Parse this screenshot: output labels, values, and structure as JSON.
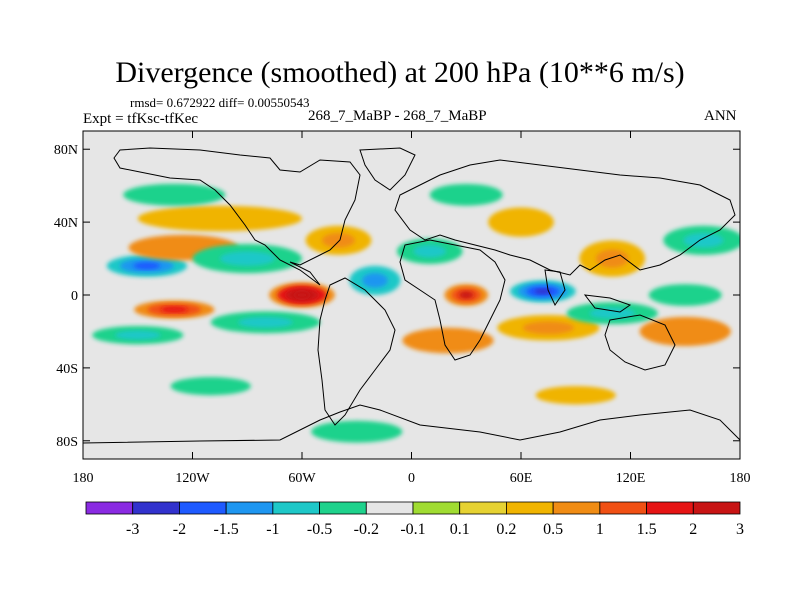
{
  "title": "Divergence (smoothed) at 200 hPa (10**6 m/s)",
  "stats": "rmsd= 0.672922 diff= 0.00550543",
  "expt": "Expt = tfKsc-tfKec",
  "cases": "268_7_MaBP - 268_7_MaBP",
  "season": "ANN",
  "map": {
    "projection": "cylindrical-equidistant",
    "lon_range": [
      -180,
      180
    ],
    "lat_range": [
      -90,
      90
    ],
    "background_color": "#e6e6e6",
    "lat_ticks": [
      {
        "label": "80N",
        "lat": 80
      },
      {
        "label": "40N",
        "lat": 40
      },
      {
        "label": "0",
        "lat": 0
      },
      {
        "label": "40S",
        "lat": -40
      },
      {
        "label": "80S",
        "lat": -80
      }
    ],
    "lon_ticks": [
      {
        "label": "180",
        "lon": -180
      },
      {
        "label": "120W",
        "lon": -120
      },
      {
        "label": "60W",
        "lon": -60
      },
      {
        "label": "0",
        "lon": 0
      },
      {
        "label": "60E",
        "lon": 60
      },
      {
        "label": "120E",
        "lon": 120
      },
      {
        "label": "180",
        "lon": 180
      }
    ],
    "field_features": [
      {
        "lon": -60,
        "lat": 0,
        "rx": 18,
        "ry": 7,
        "value": 3.2
      },
      {
        "lon": 30,
        "lat": 0,
        "rx": 12,
        "ry": 6,
        "value": 2.0
      },
      {
        "lon": 72,
        "lat": 2,
        "rx": 18,
        "ry": 6,
        "value": -2.5
      },
      {
        "lon": -130,
        "lat": -8,
        "rx": 22,
        "ry": 5,
        "value": 1.8
      },
      {
        "lon": -145,
        "lat": 16,
        "rx": 22,
        "ry": 6,
        "value": -2.0
      },
      {
        "lon": -125,
        "lat": 26,
        "rx": 30,
        "ry": 7,
        "value": 0.6
      },
      {
        "lon": -90,
        "lat": 20,
        "rx": 30,
        "ry": 8,
        "value": -0.9
      },
      {
        "lon": -105,
        "lat": 42,
        "rx": 45,
        "ry": 7,
        "value": 0.4
      },
      {
        "lon": -130,
        "lat": 55,
        "rx": 28,
        "ry": 6,
        "value": -0.4
      },
      {
        "lon": -150,
        "lat": -22,
        "rx": 25,
        "ry": 5,
        "value": -0.7
      },
      {
        "lon": -80,
        "lat": -15,
        "rx": 30,
        "ry": 6,
        "value": -0.8
      },
      {
        "lon": -20,
        "lat": 8,
        "rx": 14,
        "ry": 8,
        "value": -1.2
      },
      {
        "lon": -40,
        "lat": 30,
        "rx": 18,
        "ry": 8,
        "value": 0.9
      },
      {
        "lon": 10,
        "lat": 24,
        "rx": 18,
        "ry": 7,
        "value": -0.7
      },
      {
        "lon": 20,
        "lat": -25,
        "rx": 25,
        "ry": 7,
        "value": 0.6
      },
      {
        "lon": 75,
        "lat": -18,
        "rx": 28,
        "ry": 7,
        "value": 0.7
      },
      {
        "lon": 110,
        "lat": 20,
        "rx": 18,
        "ry": 10,
        "value": 0.9
      },
      {
        "lon": 110,
        "lat": -10,
        "rx": 25,
        "ry": 6,
        "value": -0.9
      },
      {
        "lon": 160,
        "lat": 30,
        "rx": 22,
        "ry": 8,
        "value": -0.8
      },
      {
        "lon": 150,
        "lat": -20,
        "rx": 25,
        "ry": 8,
        "value": 0.5
      },
      {
        "lon": 150,
        "lat": 0,
        "rx": 20,
        "ry": 6,
        "value": -0.5
      },
      {
        "lon": 60,
        "lat": 40,
        "rx": 18,
        "ry": 8,
        "value": 0.4
      },
      {
        "lon": 30,
        "lat": 55,
        "rx": 20,
        "ry": 6,
        "value": -0.3
      },
      {
        "lon": -30,
        "lat": -75,
        "rx": 25,
        "ry": 6,
        "value": -0.5
      },
      {
        "lon": -110,
        "lat": -50,
        "rx": 22,
        "ry": 5,
        "value": -0.3
      },
      {
        "lon": 90,
        "lat": -55,
        "rx": 22,
        "ry": 5,
        "value": 0.3
      }
    ]
  },
  "colorbar": {
    "colors": [
      "#8a2be2",
      "#3232cd",
      "#1e5aff",
      "#1e96f0",
      "#1ec8c8",
      "#1ed28c",
      "#e6e6e6",
      "#a0dc32",
      "#e6d232",
      "#f0b400",
      "#f08c14",
      "#f05014",
      "#e61414",
      "#c81414"
    ],
    "labels": [
      "-3",
      "-2",
      "-1.5",
      "-1",
      "-0.5",
      "-0.2",
      "-0.1",
      "0.1",
      "0.2",
      "0.5",
      "1",
      "1.5",
      "2",
      "3"
    ],
    "levels": [
      -3,
      -2,
      -1.5,
      -1,
      -0.5,
      -0.2,
      -0.1,
      0.1,
      0.2,
      0.5,
      1,
      1.5,
      2,
      3
    ]
  }
}
